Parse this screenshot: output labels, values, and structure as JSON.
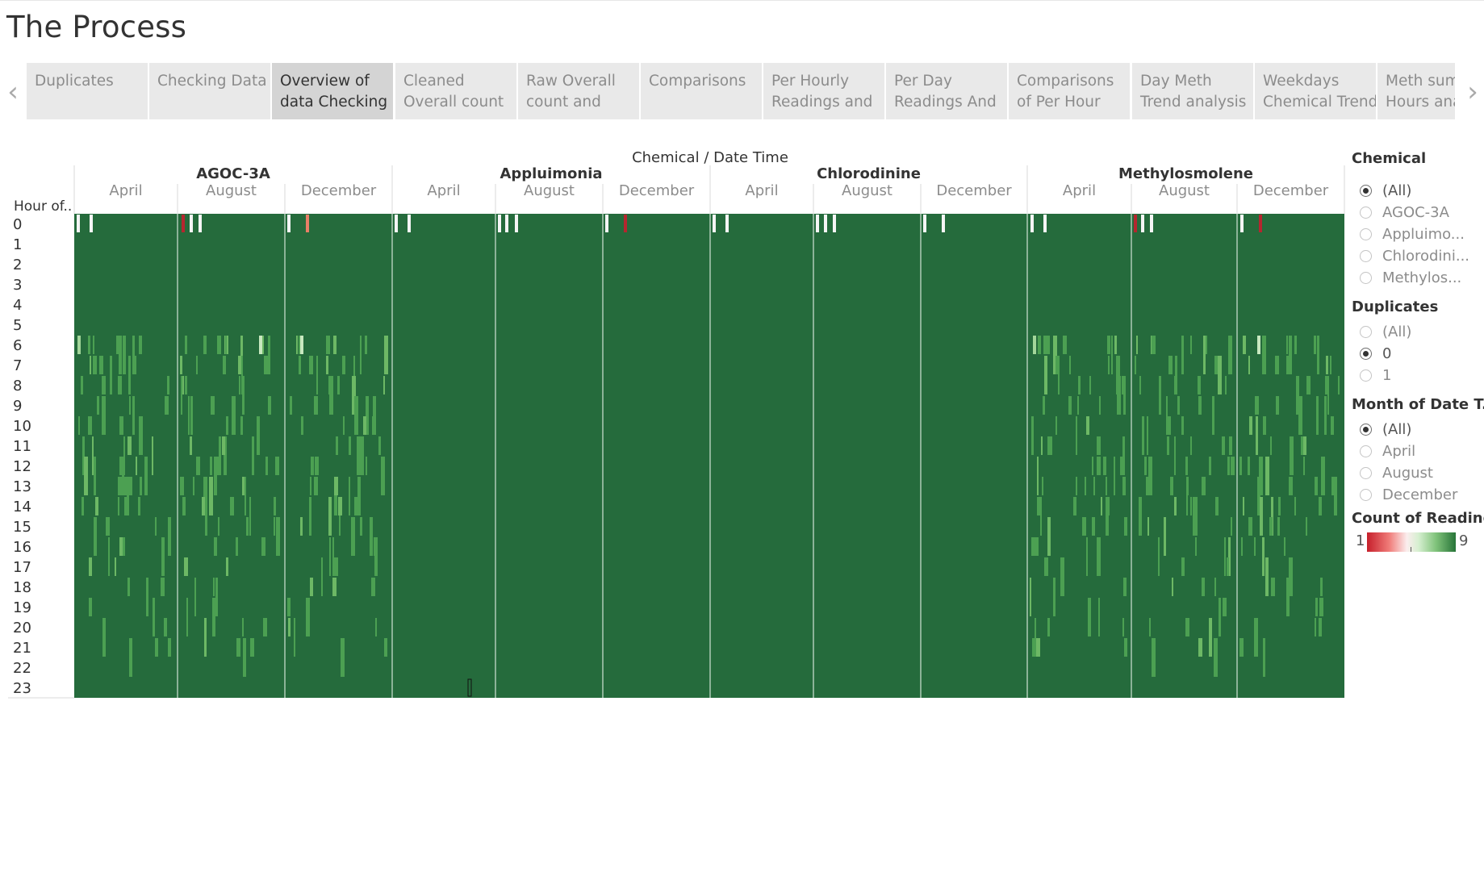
{
  "page": {
    "title": "The Process"
  },
  "tabs": {
    "prev_icon": "chevron-left-icon",
    "next_icon": "chevron-right-icon",
    "items": [
      {
        "line1": "Duplicates",
        "line2": ""
      },
      {
        "line1": "Checking Data",
        "line2": ""
      },
      {
        "line1": "Overview of",
        "line2": "data Checking"
      },
      {
        "line1": "Cleaned",
        "line2": "Overall count"
      },
      {
        "line1": "Raw Overall",
        "line2": "count and"
      },
      {
        "line1": "Comparisons",
        "line2": ""
      },
      {
        "line1": "Per Hourly",
        "line2": "Readings and"
      },
      {
        "line1": "Per Day",
        "line2": "Readings And"
      },
      {
        "line1": "Comparisons",
        "line2": "of Per Hour"
      },
      {
        "line1": "Day Meth",
        "line2": "Trend analysis"
      },
      {
        "line1": "Weekdays",
        "line2": "Chemical Trend"
      },
      {
        "line1": "Meth sum",
        "line2": "Hours ana"
      }
    ],
    "active_index": 2
  },
  "chart_data": {
    "type": "heatmap",
    "header": "Chemical  /  Date Time",
    "row_axis_label": "Hour of..",
    "rows": [
      "0",
      "1",
      "2",
      "3",
      "4",
      "5",
      "6",
      "7",
      "8",
      "9",
      "10",
      "11",
      "12",
      "13",
      "14",
      "15",
      "16",
      "17",
      "18",
      "19",
      "20",
      "21",
      "22",
      "23"
    ],
    "chemicals": [
      {
        "name": "AGOC-3A",
        "months": [
          "April",
          "August",
          "December"
        ]
      },
      {
        "name": "Appluimonia",
        "months": [
          "April",
          "August",
          "December"
        ]
      },
      {
        "name": "Chlorodinine",
        "months": [
          "April",
          "August",
          "December"
        ]
      },
      {
        "name": "Methylosmolene",
        "months": [
          "April",
          "August",
          "December"
        ]
      }
    ],
    "color_measure": "Count of Reading",
    "color_range": [
      1,
      9
    ],
    "colors": {
      "low": "#c61f2b",
      "mid": "#f7f7f7",
      "high": "#277438",
      "base": "#256b3c",
      "light": "#4ca052"
    }
  },
  "filters": {
    "chemical": {
      "title": "Chemical",
      "options": [
        "(All)",
        "AGOC-3A",
        "Appluimo...",
        "Chlorodini...",
        "Methylos..."
      ],
      "selected": 0
    },
    "duplicates": {
      "title": "Duplicates",
      "options": [
        "(All)",
        "0",
        "1"
      ],
      "selected": 1
    },
    "month": {
      "title": "Month of Date T..",
      "options": [
        "(All)",
        "April",
        "August",
        "December"
      ],
      "selected": 0
    }
  },
  "legend": {
    "title": "Count of Reading",
    "min_label": "1",
    "max_label": "9"
  }
}
